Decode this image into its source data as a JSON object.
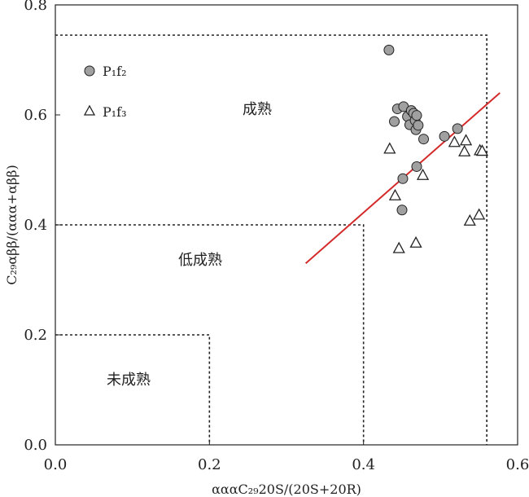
{
  "chart_data": {
    "type": "scatter",
    "xlabel": "αααC₂₉20S/(20S+20R)",
    "ylabel": "C₂₉αββ/(ααα+αββ)",
    "xlim": [
      0,
      0.6
    ],
    "ylim": [
      0,
      0.8
    ],
    "x_ticks": [
      "0.0",
      "0.2",
      "0.4",
      "0.6"
    ],
    "y_ticks": [
      "0.0",
      "0.2",
      "0.4",
      "0.6",
      "0.8"
    ],
    "grid": false,
    "legend_position": "top-left",
    "series": [
      {
        "name": "P₁f₂",
        "marker": "circle",
        "color": "#a0a0a0",
        "points": [
          [
            0.433,
            0.718
          ],
          [
            0.44,
            0.588
          ],
          [
            0.444,
            0.611
          ],
          [
            0.452,
            0.615
          ],
          [
            0.457,
            0.597
          ],
          [
            0.46,
            0.582
          ],
          [
            0.462,
            0.608
          ],
          [
            0.465,
            0.603
          ],
          [
            0.467,
            0.59
          ],
          [
            0.468,
            0.573
          ],
          [
            0.469,
            0.599
          ],
          [
            0.471,
            0.581
          ],
          [
            0.478,
            0.556
          ],
          [
            0.451,
            0.484
          ],
          [
            0.469,
            0.506
          ],
          [
            0.45,
            0.427
          ],
          [
            0.505,
            0.561
          ],
          [
            0.522,
            0.575
          ]
        ]
      },
      {
        "name": "P₁f₃",
        "marker": "triangle",
        "color": "#ffffff",
        "points": [
          [
            0.434,
            0.538
          ],
          [
            0.441,
            0.453
          ],
          [
            0.446,
            0.357
          ],
          [
            0.468,
            0.367
          ],
          [
            0.477,
            0.49
          ],
          [
            0.518,
            0.55
          ],
          [
            0.533,
            0.553
          ],
          [
            0.531,
            0.533
          ],
          [
            0.551,
            0.535
          ],
          [
            0.554,
            0.534
          ],
          [
            0.538,
            0.407
          ],
          [
            0.55,
            0.418
          ]
        ]
      }
    ],
    "trend_line": {
      "color": "#d42a2a",
      "from": [
        0.325,
        0.33
      ],
      "to": [
        0.577,
        0.64
      ]
    },
    "regions": [
      {
        "label": "成熟",
        "x_max": 0.56,
        "y_max": 0.745
      },
      {
        "label": "低成熟",
        "x_max": 0.4,
        "y_max": 0.4
      },
      {
        "label": "未成熟",
        "x_max": 0.2,
        "y_max": 0.2
      }
    ]
  }
}
